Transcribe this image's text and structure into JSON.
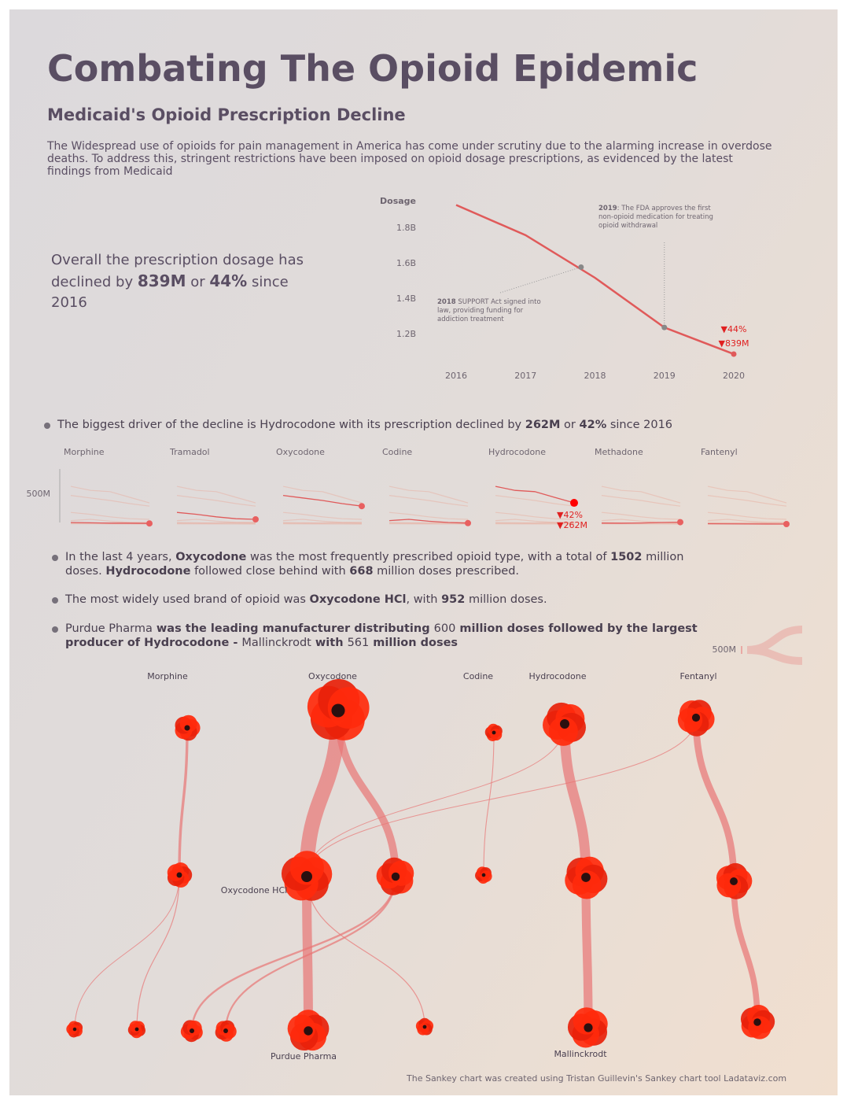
{
  "title": "Combating The Opioid Epidemic",
  "subtitle": "Medicaid's Opioid Prescription Decline",
  "intro": "The Widespread use of opioids for pain management in America has come under scrutiny due to the alarming increase in overdose deaths. To address this, stringent restrictions have been imposed on opioid dosage prescriptions, as evidenced by the latest findings from Medicaid",
  "summary": [
    "Overall the prescription dosage has declined by ",
    "839M",
    " or ",
    "44%",
    " since 2016"
  ],
  "bullets": [
    [
      "The biggest driver of the decline is Hydrocodone with its prescription declined by ",
      "262M",
      " or ",
      "42%",
      " since 2016"
    ],
    [
      "In the last 4 years, ",
      "Oxycodone",
      " was the most frequently prescribed opioid type, with a total of ",
      "1502",
      " million doses. ",
      "Hydrocodone",
      " followed close behind with ",
      "668",
      " million doses prescribed."
    ],
    [
      "The most widely used brand of opioid was ",
      "Oxycodone HCl",
      ", with ",
      "952",
      " million doses."
    ],
    [
      "Purdue Pharma",
      " was the leading manufacturer distributing ",
      "600",
      " million doses followed by the largest producer of Hydrocodone - ",
      "Mallinckrodt",
      " with ",
      "561",
      " million doses"
    ]
  ],
  "footer": "The Sankey chart was created using Tristan Guillevin's Sankey chart tool  Ladataviz.com",
  "chart_data": [
    {
      "type": "line",
      "y_label": "Dosage",
      "color": "#e05a5a",
      "x": [
        2016,
        2017,
        2018,
        2019,
        2020
      ],
      "values": [
        1.93,
        1.76,
        1.52,
        1.24,
        1.09
      ],
      "value_labels": [
        null,
        null,
        null,
        null,
        "▼839M"
      ],
      "change_label": "▼44%",
      "xlim": [
        2016,
        2020
      ],
      "xticks": [
        2016,
        2017,
        2018,
        2019,
        2020
      ],
      "ylim": [
        1.05,
        1.95
      ],
      "yticks": [
        {
          "value": 1.2,
          "label": "1.2B"
        },
        {
          "value": 1.4,
          "label": "1.4B"
        },
        {
          "value": 1.6,
          "label": "1.6B"
        },
        {
          "value": 1.8,
          "label": "1.8B"
        }
      ],
      "annotations": [
        {
          "label": "2018",
          "text": " SUPPORT Act signed into law, providing funding for addiction treatment",
          "x": 2017.8,
          "y": 1.58
        },
        {
          "label": "2019",
          "text": ": The FDA approves the first non-opioid medication for treating opioid withdrawal",
          "x": 2019,
          "y": 1.24
        }
      ]
    },
    {
      "type": "small-multiples",
      "color": "#e05a5a",
      "x": [
        2016,
        2017,
        2018,
        2019,
        2020
      ],
      "ylim": [
        0,
        900
      ],
      "yticks": [
        {
          "value": 500,
          "label": "500M"
        }
      ],
      "series": [
        {
          "name": "Morphine",
          "values": [
            50,
            45,
            40,
            38,
            35
          ]
        },
        {
          "name": "Tramadol",
          "values": [
            210,
            180,
            140,
            110,
            100
          ]
        },
        {
          "name": "Oxycodone",
          "values": [
            480,
            440,
            400,
            350,
            310
          ]
        },
        {
          "name": "Codine",
          "values": [
            80,
            100,
            70,
            50,
            40
          ]
        },
        {
          "name": "Hydrocodone",
          "values": [
            624,
            560,
            540,
            450,
            362
          ],
          "value_labels": [
            "▼42%",
            "▼262M"
          ]
        },
        {
          "name": "Methadone",
          "values": [
            40,
            38,
            42,
            50,
            55
          ]
        },
        {
          "name": "Fantenyl",
          "values": [
            30,
            28,
            27,
            26,
            25
          ]
        }
      ]
    },
    {
      "type": "sankey",
      "color": "#e87575",
      "legend": {
        "value": 500,
        "label": "500M"
      },
      "nodes": [
        {
          "name": "Morphine",
          "value": 180
        },
        {
          "name": "Oxycodone",
          "value": 1502
        },
        {
          "name": "Codine",
          "value": 60
        },
        {
          "name": "Hydrocodone",
          "value": 668
        },
        {
          "name": "Fentanyl",
          "value": 450
        },
        {
          "name": null,
          "value": 170
        },
        {
          "name": "Oxycodone HCl",
          "value": 952
        },
        {
          "name": null,
          "value": 480
        },
        {
          "name": null,
          "value": 55
        },
        {
          "name": null,
          "value": 640
        },
        {
          "name": null,
          "value": 430
        },
        {
          "name": "Purdue Pharma",
          "value": 600
        },
        {
          "name": "Mallinckrodt",
          "value": 561
        },
        {
          "name": null,
          "value": 120
        },
        {
          "name": null,
          "value": 110
        },
        {
          "name": null,
          "value": 380
        },
        {
          "name": null,
          "value": 60
        },
        {
          "name": null,
          "value": 50
        },
        {
          "name": null,
          "value": 60
        }
      ],
      "links": [
        {
          "source": 0,
          "target": 5,
          "value": 170
        },
        {
          "source": 1,
          "target": 6,
          "value": 952
        },
        {
          "source": 1,
          "target": 7,
          "value": 480
        },
        {
          "source": 2,
          "target": 8,
          "value": 55
        },
        {
          "source": 3,
          "target": 9,
          "value": 640
        },
        {
          "source": 4,
          "target": 10,
          "value": 430
        },
        {
          "source": 3,
          "target": 6,
          "value": 20
        },
        {
          "source": 4,
          "target": 6,
          "value": 20
        },
        {
          "source": 6,
          "target": 11,
          "value": 600
        },
        {
          "source": 9,
          "target": 12,
          "value": 561
        },
        {
          "source": 7,
          "target": 13,
          "value": 120
        },
        {
          "source": 7,
          "target": 14,
          "value": 110
        },
        {
          "source": 10,
          "target": 15,
          "value": 380
        },
        {
          "source": 6,
          "target": 16,
          "value": 60
        },
        {
          "source": 5,
          "target": 17,
          "value": 50
        },
        {
          "source": 5,
          "target": 18,
          "value": 60
        }
      ]
    }
  ]
}
